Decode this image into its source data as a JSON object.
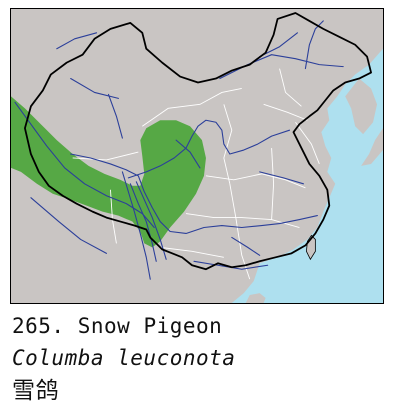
{
  "species": {
    "number": "265.",
    "common_name": "Snow Pigeon",
    "scientific_name": "Columba leuconota",
    "chinese_name": "雪鸽"
  },
  "colors": {
    "land": "#c9c5c3",
    "sea": "#aee0ef",
    "range": "#56a845",
    "rivers": "#2b3f9a",
    "country_border": "#000000",
    "province_border": "#ffffff"
  }
}
